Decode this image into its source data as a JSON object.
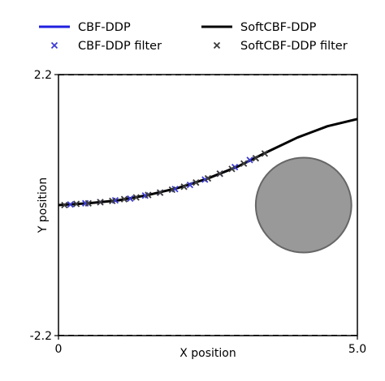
{
  "chart_data": {
    "type": "line",
    "title": "",
    "xlabel": "X position",
    "ylabel": "Y position",
    "xlim": [
      0,
      5.0
    ],
    "ylim": [
      -2.2,
      2.2
    ],
    "x_ticks": [
      {
        "value": 0,
        "label": "0"
      },
      {
        "value": 5.0,
        "label": "5.0"
      }
    ],
    "y_ticks": [
      {
        "value": 2.2,
        "label": "2.2"
      },
      {
        "value": -2.2,
        "label": "-2.2"
      }
    ],
    "grid": false,
    "legend": {
      "placement": "top",
      "entries": [
        {
          "label": "CBF-DDP",
          "kind": "line",
          "color": "#1f1fe0"
        },
        {
          "label": "SoftCBF-DDP",
          "kind": "line",
          "color": "#000000"
        },
        {
          "label": "CBF-DDP filter",
          "kind": "marker",
          "color": "#3b3bd6"
        },
        {
          "label": "SoftCBF-DDP filter",
          "kind": "marker",
          "color": "#3a3a3a"
        }
      ]
    },
    "boundaries": [
      {
        "y": 2.2,
        "style": "dashed",
        "color": "#000000"
      },
      {
        "y": -2.2,
        "style": "dashed",
        "color": "#000000"
      }
    ],
    "obstacle": {
      "cx": 4.1,
      "cy": 0.0,
      "r": 0.8,
      "fill": "#999999",
      "stroke": "#666666"
    },
    "series": [
      {
        "name": "CBF-DDP",
        "color": "#1f1fe0",
        "x": [
          0,
          0.5,
          1.0,
          1.5,
          2.0,
          2.5,
          3.0,
          3.5
        ],
        "y": [
          0.0,
          0.03,
          0.08,
          0.17,
          0.29,
          0.45,
          0.65,
          0.9
        ]
      },
      {
        "name": "SoftCBF-DDP",
        "color": "#000000",
        "x": [
          0,
          0.5,
          1.0,
          1.5,
          2.0,
          2.5,
          3.0,
          3.5,
          4.0,
          4.5,
          5.0
        ],
        "y": [
          0.0,
          0.03,
          0.08,
          0.17,
          0.29,
          0.45,
          0.65,
          0.9,
          1.14,
          1.33,
          1.45
        ]
      },
      {
        "name": "CBF-DDP filter",
        "kind": "markers",
        "color": "#3b3bd6",
        "x": [
          0.2,
          0.45,
          0.7,
          0.95,
          1.2,
          1.45,
          1.7,
          1.95,
          2.2,
          2.45,
          2.7,
          2.95,
          3.2
        ],
        "y": [
          0.01,
          0.03,
          0.05,
          0.08,
          0.11,
          0.16,
          0.21,
          0.27,
          0.34,
          0.43,
          0.53,
          0.64,
          0.76
        ]
      },
      {
        "name": "SoftCBF-DDP filter",
        "kind": "markers",
        "color": "#3a3a3a",
        "x": [
          0.1,
          0.3,
          0.5,
          0.7,
          0.9,
          1.1,
          1.3,
          1.5,
          1.7,
          1.9,
          2.1,
          2.3,
          2.5,
          2.7,
          2.9,
          3.1,
          3.3,
          3.45
        ],
        "y": [
          0.0,
          0.02,
          0.03,
          0.05,
          0.07,
          0.1,
          0.13,
          0.17,
          0.21,
          0.26,
          0.31,
          0.38,
          0.45,
          0.53,
          0.61,
          0.7,
          0.79,
          0.87
        ]
      }
    ]
  }
}
